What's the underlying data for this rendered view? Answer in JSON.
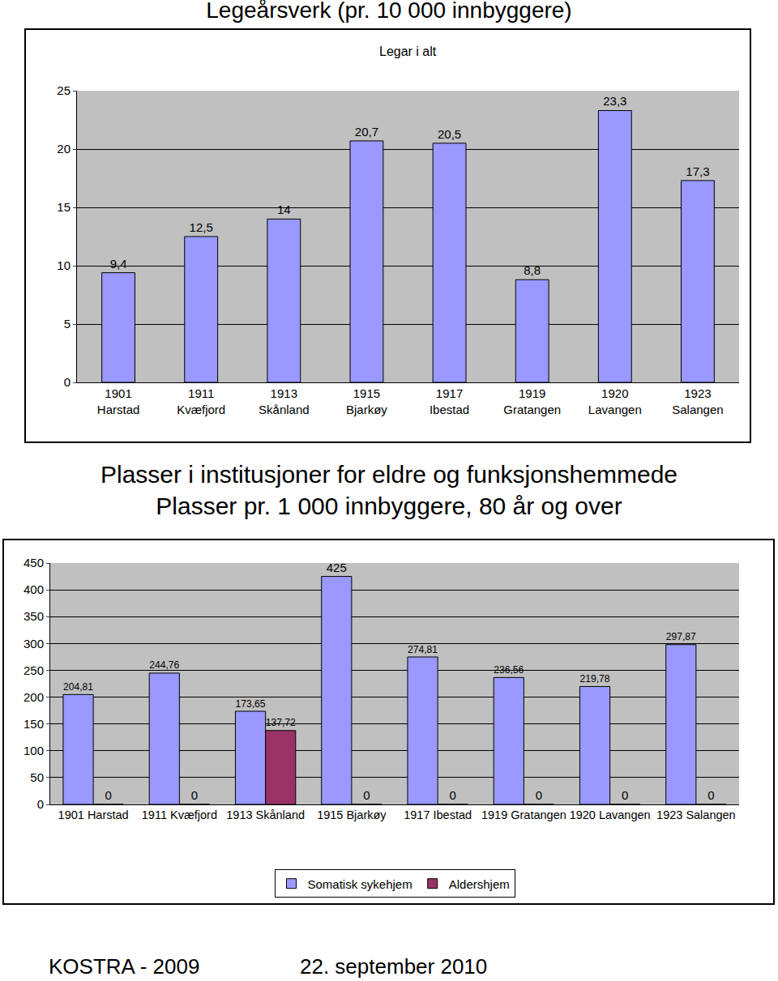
{
  "chart_data": [
    {
      "type": "bar",
      "title": "Legeårsverk (pr. 10 000 innbyggere)",
      "subtitle": "Legar i alt",
      "categories": [
        "1901 Harstad",
        "1911 Kvæfjord",
        "1913 Skånland",
        "1915 Bjarkøy",
        "1917 Ibestad",
        "1919 Gratangen",
        "1920 Lavangen",
        "1923 Salangen"
      ],
      "values": [
        9.4,
        12.5,
        14,
        20.7,
        20.5,
        8.8,
        23.3,
        17.3
      ],
      "value_labels": [
        "9,4",
        "12,5",
        "14",
        "20,7",
        "20,5",
        "8,8",
        "23,3",
        "17,3"
      ],
      "color": "#9999ff",
      "ylim": [
        0,
        25
      ],
      "yticks": [
        0,
        5,
        10,
        15,
        20,
        25
      ],
      "grid": true,
      "data_labels": true
    },
    {
      "type": "bar",
      "title": "Plasser i institusjoner for eldre og funksjonshemmede",
      "subtitle": "Plasser pr. 1 000 innbyggere, 80 år og over",
      "categories": [
        "1901 Harstad",
        "1911 Kvæfjord",
        "1913 Skånland",
        "1915 Bjarkøy",
        "1917 Ibestad",
        "1919 Gratangen",
        "1920 Lavangen",
        "1923 Salangen"
      ],
      "series": [
        {
          "name": "Somatisk sykehjem",
          "color": "#9999ff",
          "values": [
            204.81,
            244.76,
            173.65,
            425,
            274.81,
            236.56,
            219.78,
            297.87
          ],
          "value_labels": [
            "204,81",
            "244,76",
            "173,65",
            "425",
            "274,81",
            "236,56",
            "219,78",
            "297,87"
          ]
        },
        {
          "name": "Aldershjem",
          "color": "#993366",
          "values": [
            0,
            0,
            137.72,
            0,
            0,
            0,
            0,
            0
          ],
          "value_labels": [
            "0",
            "0",
            "137,72",
            "0",
            "0",
            "0",
            "0",
            "0"
          ]
        }
      ],
      "ylim": [
        0,
        450
      ],
      "yticks": [
        0,
        50,
        100,
        150,
        200,
        250,
        300,
        350,
        400,
        450
      ],
      "grid": true,
      "legend": "bottom",
      "data_labels": true
    }
  ],
  "footer": {
    "left": "KOSTRA - 2009",
    "right": "22. september 2010"
  }
}
